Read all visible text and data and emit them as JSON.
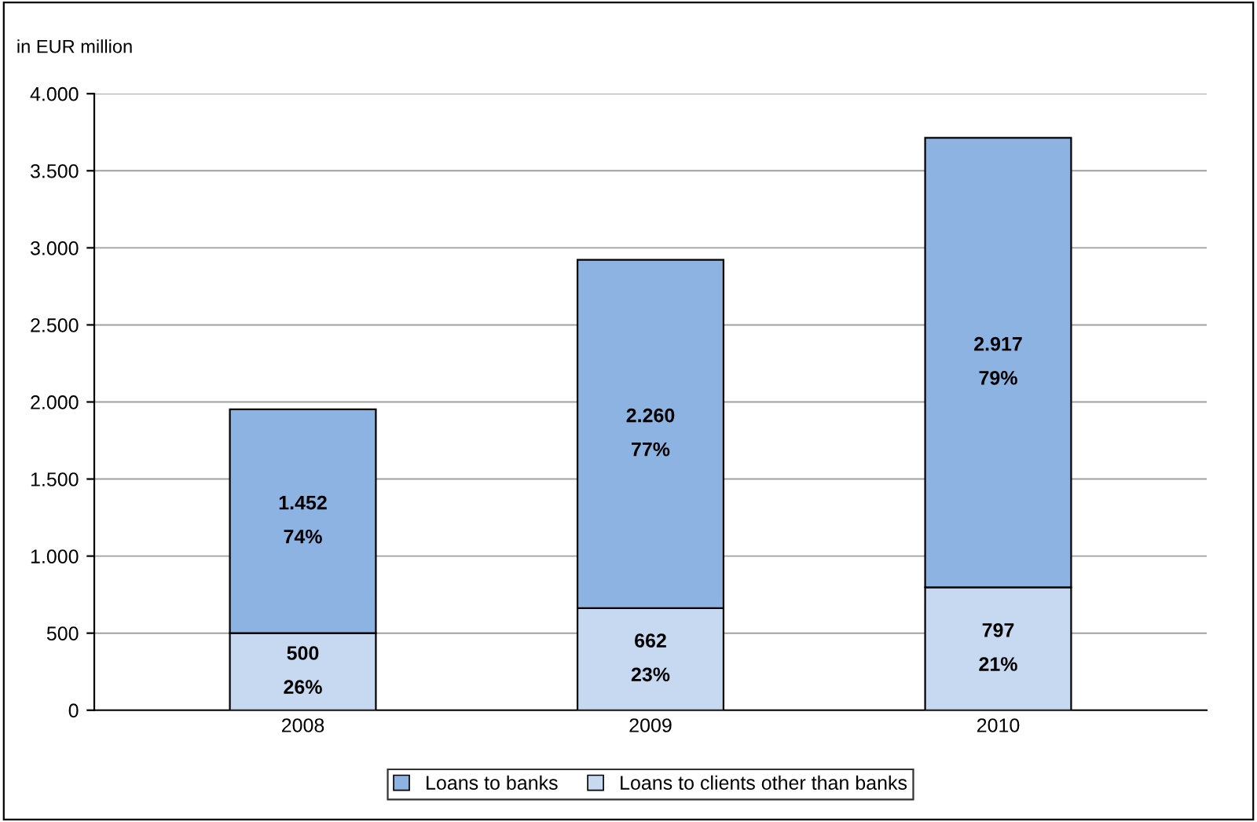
{
  "chart_data": {
    "type": "bar",
    "stacked": true,
    "ylabel": "in EUR million",
    "categories": [
      "2008",
      "2009",
      "2010"
    ],
    "series": [
      {
        "name": "Loans to clients other than banks",
        "color": "#c6d9f1",
        "values": [
          500,
          662,
          797
        ],
        "value_labels": [
          "500\n26%",
          "662\n23%",
          "797\n21%"
        ]
      },
      {
        "name": "Loans to banks",
        "color": "#8db3e2",
        "values": [
          1452,
          2260,
          2917
        ],
        "value_labels": [
          "1.452\n74%",
          "2.260\n77%",
          "2.917\n79%"
        ]
      }
    ],
    "ylim": [
      0,
      4000
    ],
    "yticks": [
      0,
      {
        "value": 500,
        "label": "500"
      },
      {
        "value": 1000,
        "label": "1.000"
      },
      {
        "value": 1500,
        "label": "1.500"
      },
      {
        "value": 2000,
        "label": "2.000"
      },
      {
        "value": 2500,
        "label": "2.500"
      },
      {
        "value": 3000,
        "label": "3.000"
      },
      {
        "value": 3500,
        "label": "3.500"
      },
      {
        "value": 4000,
        "label": "4.000"
      }
    ],
    "grid": "y",
    "legend": "bottom"
  }
}
